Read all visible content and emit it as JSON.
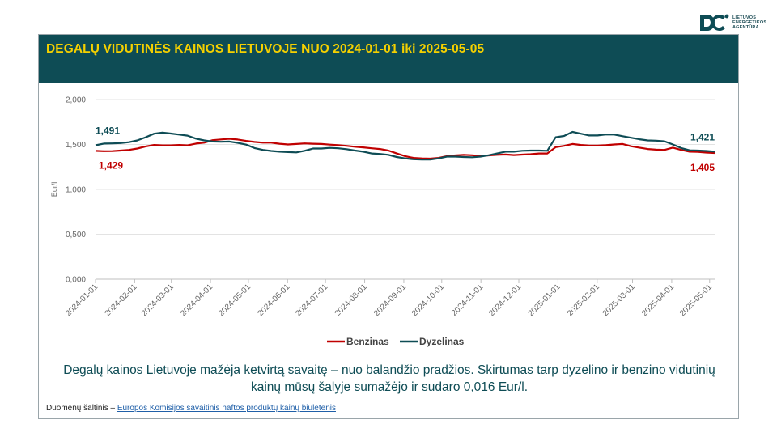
{
  "agency": {
    "name_lines": [
      "LIETUVOS",
      "ENERGETIKOS",
      "AGENTŪRA"
    ]
  },
  "title": "DEGALŲ VIDUTINĖS KAINOS LIETUVOJE NUO 2024-01-01 iki 2025-05-05",
  "note": "Degalų kainos Lietuvoje mažėja ketvirtą savaitę – nuo balandžio pradžios. Skirtumas tarp dyzelino ir benzino vidutinių kainų mūsų šalyje sumažėjo ir sudaro 0,016 Eur/l.",
  "source": {
    "label": "Duomenų šaltinis – ",
    "link_text": "Europos Komisijos savaitinis naftos produktų kainų biuletenis"
  },
  "colors": {
    "benzinas": "#c00000",
    "dyzelinas": "#0e4c55",
    "title_bg": "#0e4c55",
    "title_fg": "#f5d000"
  },
  "chart_data": {
    "type": "line",
    "title": "DEGALŲ VIDUTINĖS KAINOS LIETUVOJE NUO 2024-01-01 iki 2025-05-05",
    "ylabel": "Eur/l",
    "xlabel": "",
    "ylim": [
      0,
      2
    ],
    "yticks": [
      "0,000",
      "0,500",
      "1,000",
      "1,500",
      "2,000"
    ],
    "ytick_values": [
      0,
      0.5,
      1,
      1.5,
      2
    ],
    "x_start": "2024-01-01",
    "x_end": "2025-05-05",
    "xticks": [
      "2024-01-01",
      "2024-02-01",
      "2024-03-01",
      "2024-04-01",
      "2024-05-01",
      "2024-06-01",
      "2024-07-01",
      "2024-08-01",
      "2024-09-01",
      "2024-10-01",
      "2024-11-01",
      "2024-12-01",
      "2025-01-01",
      "2025-02-01",
      "2025-03-01",
      "2025-04-01",
      "2025-05-01"
    ],
    "legend_position": "bottom",
    "series": [
      {
        "name": "Benzinas",
        "color": "#c00000",
        "first_label": "1,429",
        "last_label": "1,405",
        "values": [
          1.429,
          1.425,
          1.426,
          1.432,
          1.44,
          1.455,
          1.478,
          1.495,
          1.49,
          1.49,
          1.495,
          1.49,
          1.51,
          1.52,
          1.548,
          1.556,
          1.563,
          1.555,
          1.54,
          1.528,
          1.52,
          1.52,
          1.508,
          1.5,
          1.505,
          1.512,
          1.508,
          1.505,
          1.498,
          1.493,
          1.485,
          1.475,
          1.468,
          1.458,
          1.45,
          1.432,
          1.4,
          1.37,
          1.35,
          1.345,
          1.342,
          1.35,
          1.37,
          1.378,
          1.385,
          1.38,
          1.372,
          1.378,
          1.385,
          1.388,
          1.382,
          1.387,
          1.392,
          1.4,
          1.4,
          1.47,
          1.485,
          1.505,
          1.495,
          1.488,
          1.487,
          1.492,
          1.5,
          1.505,
          1.48,
          1.465,
          1.45,
          1.442,
          1.44,
          1.465,
          1.44,
          1.42,
          1.418,
          1.41,
          1.405
        ]
      },
      {
        "name": "Dyzelinas",
        "color": "#0e4c55",
        "first_label": "1,491",
        "last_label": "1,421",
        "values": [
          1.491,
          1.51,
          1.512,
          1.515,
          1.525,
          1.545,
          1.58,
          1.62,
          1.632,
          1.622,
          1.61,
          1.598,
          1.565,
          1.545,
          1.532,
          1.53,
          1.532,
          1.518,
          1.498,
          1.46,
          1.44,
          1.428,
          1.42,
          1.415,
          1.412,
          1.43,
          1.455,
          1.455,
          1.462,
          1.458,
          1.448,
          1.432,
          1.42,
          1.4,
          1.395,
          1.385,
          1.36,
          1.345,
          1.335,
          1.332,
          1.332,
          1.345,
          1.365,
          1.365,
          1.36,
          1.358,
          1.365,
          1.38,
          1.4,
          1.42,
          1.42,
          1.43,
          1.432,
          1.432,
          1.43,
          1.58,
          1.595,
          1.64,
          1.62,
          1.6,
          1.6,
          1.612,
          1.61,
          1.592,
          1.575,
          1.558,
          1.545,
          1.542,
          1.535,
          1.5,
          1.46,
          1.435,
          1.432,
          1.428,
          1.421
        ]
      }
    ]
  }
}
